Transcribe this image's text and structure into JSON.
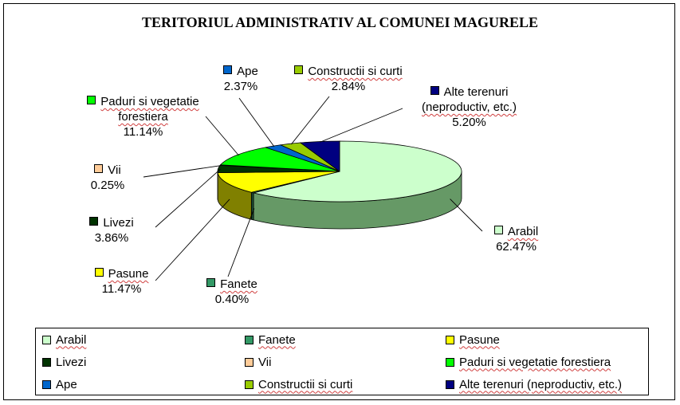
{
  "chart_data": {
    "type": "pie",
    "title": "TERITORIUL ADMINISTRATIV AL COMUNEI MAGURELE",
    "legend_position": "bottom",
    "series": [
      {
        "values": [
          62.47,
          0.4,
          11.47,
          3.86,
          0.25,
          11.14,
          2.37,
          2.84,
          5.2
        ]
      }
    ],
    "slices": [
      {
        "label": "Arabil",
        "value": 62.47,
        "display": "62.47%",
        "color": "#ccffcc",
        "side": "#669966"
      },
      {
        "label": "Fanete",
        "value": 0.4,
        "display": "0.40%",
        "color": "#339966",
        "side": "#1a4d33"
      },
      {
        "label": "Pasune",
        "value": 11.47,
        "display": "11.47%",
        "color": "#ffff00",
        "side": "#808000"
      },
      {
        "label": "Livezi",
        "value": 3.86,
        "display": "3.86%",
        "color": "#003300",
        "side": "#001a00"
      },
      {
        "label": "Vii",
        "value": 0.25,
        "display": "0.25%",
        "color": "#ffcc99",
        "side": "#806650"
      },
      {
        "label": "Paduri si vegetatie forestiera",
        "value": 11.14,
        "display": "11.14%",
        "color": "#00ff00",
        "side": "#008000"
      },
      {
        "label": "Ape",
        "value": 2.37,
        "display": "2.37%",
        "color": "#0066cc",
        "side": "#003366"
      },
      {
        "label": "Constructii si curti",
        "value": 2.84,
        "display": "2.84%",
        "color": "#99cc00",
        "side": "#4d6600"
      },
      {
        "label": "Alte terenuri (neproductiv, etc.)",
        "value": 5.2,
        "display": "5.20%",
        "color": "#000080",
        "side": "#000040"
      }
    ]
  },
  "labels": {
    "arabil": {
      "name": "Arabil",
      "pct": "62.47%"
    },
    "fanete": {
      "name": "Fanete",
      "pct": "0.40%"
    },
    "pasune": {
      "name": "Pasune",
      "pct": "11.47%"
    },
    "livezi": {
      "name": "Livezi",
      "pct": "3.86%"
    },
    "vii": {
      "name": "Vii",
      "pct": "0.25%"
    },
    "paduri": {
      "name1": "Paduri si vegetatie",
      "name2": "forestiera",
      "pct": "11.14%"
    },
    "ape": {
      "name": "Ape",
      "pct": "2.37%"
    },
    "constructii": {
      "name": "Constructii si curti",
      "pct": "2.84%"
    },
    "alte": {
      "name1": "Alte terenuri",
      "name2": "(neproductiv, etc.)",
      "pct": "5.20%"
    }
  },
  "legend": [
    "Arabil",
    "Fanete",
    "Pasune",
    "Livezi",
    "Vii",
    "Paduri si vegetatie forestiera",
    "Ape",
    "Constructii si curti",
    "Alte terenuri (neproductiv, etc.)"
  ]
}
